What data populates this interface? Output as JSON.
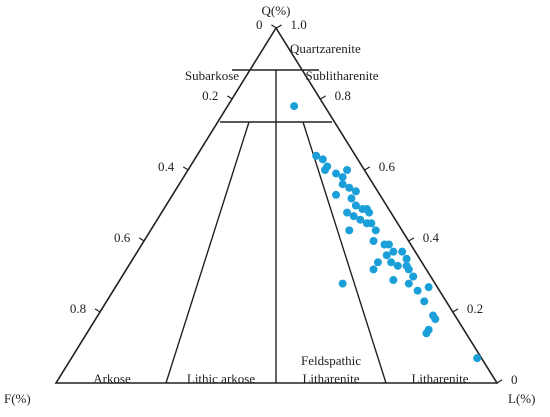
{
  "chart_data": {
    "type": "ternary",
    "apex_labels": {
      "top": "Q(%)",
      "left": "F(%)",
      "right": "L(%)"
    },
    "fields": [
      "Quartzarenite",
      "Subarkose",
      "Sublitharenite",
      "Arkose",
      "Lithic arkose",
      [
        "Feldspathic",
        "Litharenite"
      ],
      "Litharenite"
    ],
    "f_ticks": [
      0,
      0.2,
      0.4,
      0.6,
      0.8
    ],
    "q_ticks": [
      0,
      0.2,
      0.4,
      0.6,
      0.8,
      {
        "value": 1,
        "label": "1.0"
      }
    ],
    "series": [
      {
        "color": "#1a9fd8",
        "q": [
          0.78,
          0.64,
          0.63,
          0.6,
          0.61,
          0.59,
          0.58,
          0.6,
          0.56,
          0.55,
          0.53,
          0.52,
          0.54,
          0.5,
          0.49,
          0.49,
          0.48,
          0.48,
          0.47,
          0.46,
          0.45,
          0.45,
          0.43,
          0.43,
          0.4,
          0.39,
          0.39,
          0.37,
          0.37,
          0.35,
          0.36,
          0.34,
          0.34,
          0.33,
          0.33,
          0.32,
          0.3,
          0.32,
          0.29,
          0.28,
          0.26,
          0.27,
          0.28,
          0.23,
          0.19,
          0.18,
          0.15,
          0.14,
          0.07
        ],
        "f": [
          0.07,
          0.09,
          0.08,
          0.09,
          0.08,
          0.07,
          0.06,
          0.04,
          0.07,
          0.06,
          0.1,
          0.07,
          0.05,
          0.07,
          0.06,
          0.05,
          0.05,
          0.1,
          0.09,
          0.08,
          0.07,
          0.06,
          0.06,
          0.12,
          0.08,
          0.06,
          0.05,
          0.05,
          0.03,
          0.03,
          0.07,
          0.07,
          0.1,
          0.06,
          0.04,
          0.04,
          0.04,
          0.12,
          0.09,
          0.06,
          0.05,
          0.02,
          0.21,
          0.05,
          0.05,
          0.05,
          0.08,
          0.09,
          0.01
        ],
        "l": [
          0.15,
          0.27,
          0.29,
          0.31,
          0.31,
          0.34,
          0.36,
          0.36,
          0.37,
          0.39,
          0.37,
          0.41,
          0.41,
          0.43,
          0.45,
          0.46,
          0.47,
          0.42,
          0.44,
          0.46,
          0.48,
          0.49,
          0.51,
          0.45,
          0.52,
          0.55,
          0.56,
          0.58,
          0.6,
          0.62,
          0.57,
          0.59,
          0.56,
          0.61,
          0.63,
          0.64,
          0.66,
          0.56,
          0.62,
          0.66,
          0.69,
          0.71,
          0.51,
          0.72,
          0.76,
          0.77,
          0.77,
          0.77,
          0.92
        ]
      }
    ]
  }
}
